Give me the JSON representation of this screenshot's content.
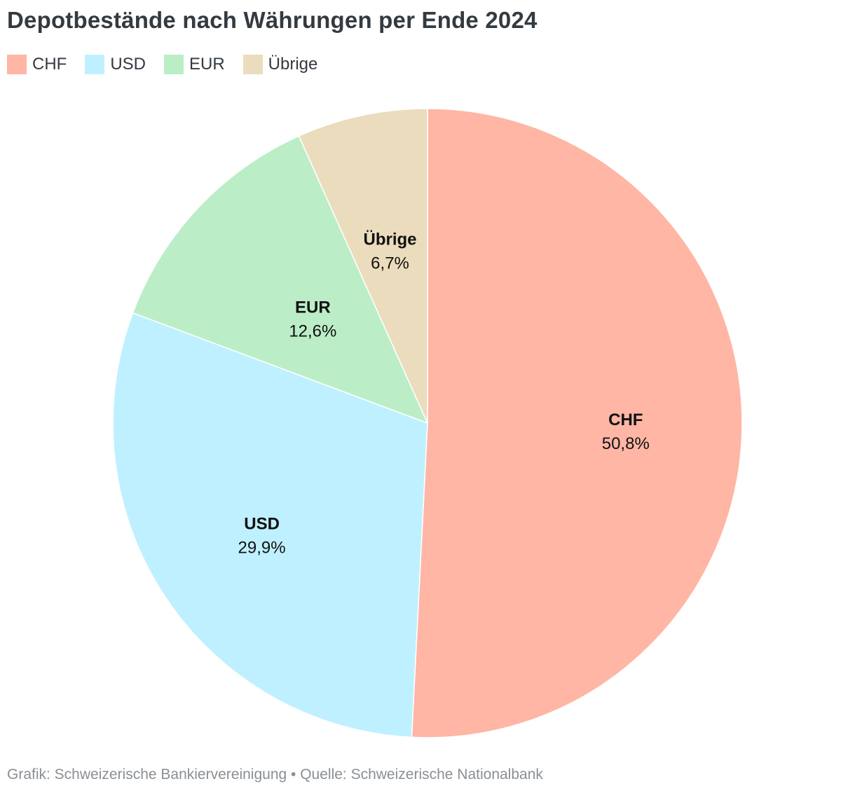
{
  "title": "Depotbestände nach Währungen per Ende 2024",
  "footer": "Grafik: Schweizerische Bankiervereinigung • Quelle: Schweizerische Nationalbank",
  "chart_data": {
    "type": "pie",
    "title": "Depotbestände nach Währungen per Ende 2024",
    "legend_position": "top-left",
    "slices": [
      {
        "label": "CHF",
        "value": 50.8,
        "display": "50,8%",
        "color": "#ffb6a5"
      },
      {
        "label": "USD",
        "value": 29.9,
        "display": "29,9%",
        "color": "#bff0ff"
      },
      {
        "label": "EUR",
        "value": 12.6,
        "display": "12,6%",
        "color": "#bbeec6"
      },
      {
        "label": "Übrige",
        "value": 6.7,
        "display": "6,7%",
        "color": "#ebdcbd"
      }
    ]
  }
}
